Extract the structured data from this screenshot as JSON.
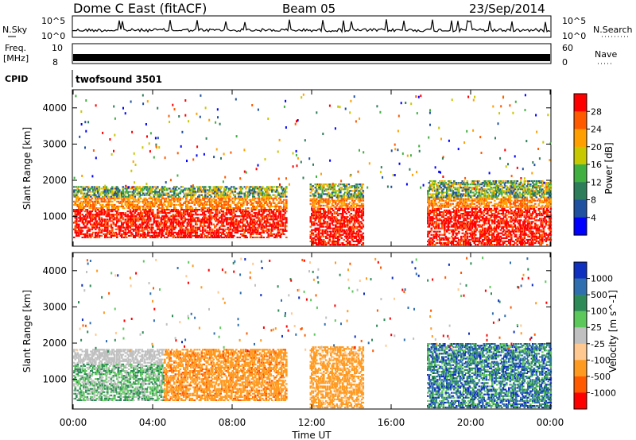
{
  "header": {
    "radar": "Dome C East (fitACF)",
    "beam": "Beam 05",
    "date": "23/Sep/2014"
  },
  "panels": {
    "nsky_label": "N.Sky",
    "nsky_ticks": [
      "10^5",
      "10^0"
    ],
    "nsearch_label": "N.Search",
    "nsearch_ticks": [
      "10^5",
      "10^0"
    ],
    "freq_label": "Freq.",
    "freq_unit": "[MHz]",
    "freq_ticks": [
      "10",
      "8"
    ],
    "nave_label": "Nave",
    "nave_ticks": [
      "60",
      "0"
    ],
    "cpid_label": "CPID",
    "cpid_value": "twofsound 3501"
  },
  "chart_data": [
    {
      "type": "heatmap",
      "title": "",
      "quantity": "Power",
      "colorbar_label": "Power [dB]",
      "colorbar_ticks": [
        "28",
        "24",
        "20",
        "16",
        "12",
        "8",
        "4"
      ],
      "colorbar_colors": [
        "#ff0000",
        "#ff5a00",
        "#ffa000",
        "#c8c800",
        "#40b040",
        "#2e7d5a",
        "#2050a0",
        "#0000ff"
      ],
      "ylabel": "Slant Range [km]",
      "yticks": [
        1000,
        2000,
        3000,
        4000
      ],
      "ylim": [
        180,
        4500
      ],
      "xlim_hours": [
        0,
        24
      ],
      "regions": [
        {
          "t0": 0.0,
          "t1": 10.7,
          "r0": 400,
          "r1": 1800,
          "level": "strong",
          "desc": "00:00-10:40 band"
        },
        {
          "t0": 11.9,
          "t1": 14.6,
          "r0": 200,
          "r1": 1900,
          "level": "strong",
          "desc": "12:00-14:30 band"
        },
        {
          "t0": 17.8,
          "t1": 24.0,
          "r0": 200,
          "r1": 2000,
          "level": "strong",
          "desc": "18:00-24:00 band"
        }
      ]
    },
    {
      "type": "heatmap",
      "title": "",
      "quantity": "Velocity",
      "colorbar_label": "Velocity [m s^-1]",
      "colorbar_ticks": [
        "1000",
        "500",
        "100",
        "25",
        "-25",
        "-100",
        "-500",
        "-1000"
      ],
      "colorbar_colors": [
        "#1030c0",
        "#2f6fb0",
        "#2e8b57",
        "#5cc85c",
        "#c0c0c0",
        "#ffc890",
        "#ff9a20",
        "#ff5a00",
        "#ff0000"
      ],
      "ylabel": "Slant Range [km]",
      "yticks": [
        1000,
        2000,
        3000,
        4000
      ],
      "ylim": [
        180,
        4500
      ],
      "xlim_hours": [
        0,
        24
      ],
      "xticks": [
        "00:00",
        "04:00",
        "08:00",
        "12:00",
        "16:00",
        "20:00",
        "00:00"
      ],
      "xlabel": "Time UT"
    }
  ]
}
